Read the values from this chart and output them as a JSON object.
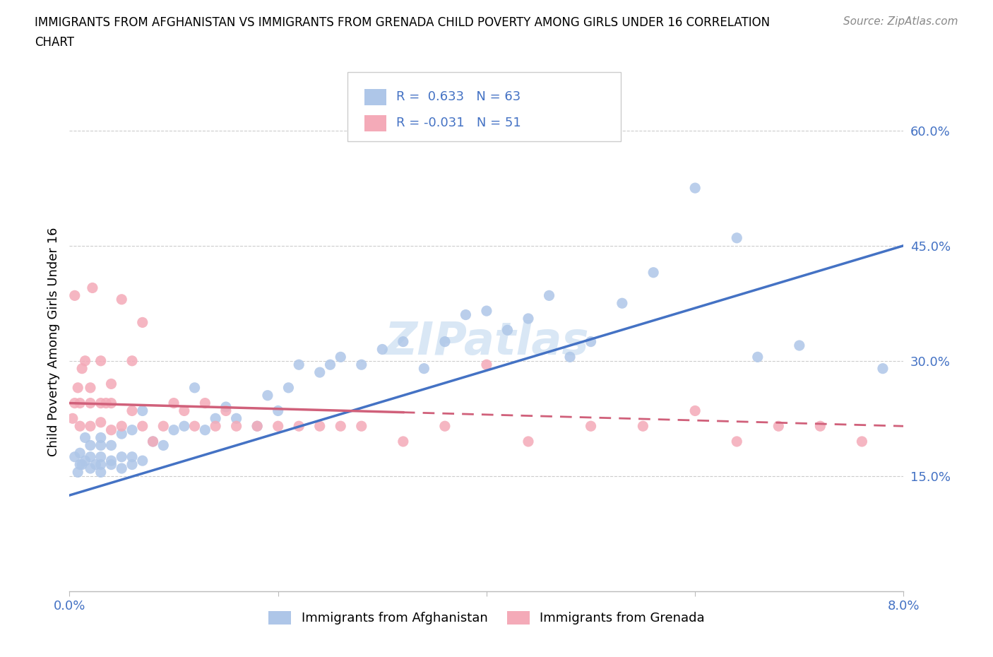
{
  "title_line1": "IMMIGRANTS FROM AFGHANISTAN VS IMMIGRANTS FROM GRENADA CHILD POVERTY AMONG GIRLS UNDER 16 CORRELATION",
  "title_line2": "CHART",
  "source_text": "Source: ZipAtlas.com",
  "ylabel": "Child Poverty Among Girls Under 16",
  "xlim": [
    0.0,
    0.08
  ],
  "ylim": [
    0.0,
    0.65
  ],
  "x_ticks": [
    0.0,
    0.02,
    0.04,
    0.06,
    0.08
  ],
  "x_tick_labels": [
    "0.0%",
    "",
    "",
    "",
    "8.0%"
  ],
  "y_ticks": [
    0.15,
    0.3,
    0.45,
    0.6
  ],
  "y_tick_labels": [
    "15.0%",
    "30.0%",
    "45.0%",
    "60.0%"
  ],
  "afghanistan_R": "0.633",
  "afghanistan_N": "63",
  "grenada_R": "-0.031",
  "grenada_N": "51",
  "afghanistan_color": "#aec6e8",
  "grenada_color": "#f4aab8",
  "afghanistan_line_color": "#4472c4",
  "grenada_line_color": "#d0607a",
  "legend_label_afghanistan": "Immigrants from Afghanistan",
  "legend_label_grenada": "Immigrants from Grenada",
  "afghanistan_scatter_x": [
    0.0005,
    0.0008,
    0.001,
    0.001,
    0.0012,
    0.0015,
    0.0015,
    0.002,
    0.002,
    0.002,
    0.0025,
    0.003,
    0.003,
    0.003,
    0.003,
    0.003,
    0.004,
    0.004,
    0.004,
    0.005,
    0.005,
    0.005,
    0.006,
    0.006,
    0.006,
    0.007,
    0.007,
    0.008,
    0.009,
    0.01,
    0.011,
    0.012,
    0.013,
    0.014,
    0.015,
    0.016,
    0.018,
    0.019,
    0.02,
    0.021,
    0.022,
    0.024,
    0.025,
    0.026,
    0.028,
    0.03,
    0.032,
    0.034,
    0.036,
    0.038,
    0.04,
    0.042,
    0.044,
    0.046,
    0.048,
    0.05,
    0.053,
    0.056,
    0.06,
    0.064,
    0.066,
    0.07,
    0.078
  ],
  "afghanistan_scatter_y": [
    0.175,
    0.155,
    0.165,
    0.18,
    0.165,
    0.17,
    0.2,
    0.16,
    0.175,
    0.19,
    0.165,
    0.155,
    0.165,
    0.175,
    0.19,
    0.2,
    0.165,
    0.17,
    0.19,
    0.16,
    0.175,
    0.205,
    0.165,
    0.175,
    0.21,
    0.17,
    0.235,
    0.195,
    0.19,
    0.21,
    0.215,
    0.265,
    0.21,
    0.225,
    0.24,
    0.225,
    0.215,
    0.255,
    0.235,
    0.265,
    0.295,
    0.285,
    0.295,
    0.305,
    0.295,
    0.315,
    0.325,
    0.29,
    0.325,
    0.36,
    0.365,
    0.34,
    0.355,
    0.385,
    0.305,
    0.325,
    0.375,
    0.415,
    0.525,
    0.46,
    0.305,
    0.32,
    0.29
  ],
  "grenada_scatter_x": [
    0.0003,
    0.0005,
    0.001,
    0.001,
    0.0012,
    0.0015,
    0.002,
    0.002,
    0.002,
    0.0022,
    0.003,
    0.003,
    0.003,
    0.0035,
    0.004,
    0.004,
    0.004,
    0.005,
    0.005,
    0.006,
    0.006,
    0.007,
    0.007,
    0.008,
    0.009,
    0.01,
    0.011,
    0.012,
    0.013,
    0.014,
    0.015,
    0.016,
    0.018,
    0.02,
    0.022,
    0.024,
    0.026,
    0.028,
    0.032,
    0.036,
    0.04,
    0.044,
    0.05,
    0.055,
    0.06,
    0.064,
    0.068,
    0.072,
    0.076,
    0.0005,
    0.0008
  ],
  "grenada_scatter_y": [
    0.225,
    0.245,
    0.215,
    0.245,
    0.29,
    0.3,
    0.215,
    0.245,
    0.265,
    0.395,
    0.22,
    0.245,
    0.3,
    0.245,
    0.21,
    0.245,
    0.27,
    0.215,
    0.38,
    0.235,
    0.3,
    0.215,
    0.35,
    0.195,
    0.215,
    0.245,
    0.235,
    0.215,
    0.245,
    0.215,
    0.235,
    0.215,
    0.215,
    0.215,
    0.215,
    0.215,
    0.215,
    0.215,
    0.195,
    0.215,
    0.295,
    0.195,
    0.215,
    0.215,
    0.235,
    0.195,
    0.215,
    0.215,
    0.195,
    0.385,
    0.265
  ],
  "af_line_x0": 0.0,
  "af_line_x1": 0.08,
  "af_line_y0": 0.125,
  "af_line_y1": 0.45,
  "gr_line_x0": 0.0,
  "gr_line_x1": 0.08,
  "gr_line_y0": 0.245,
  "gr_line_y1": 0.215
}
